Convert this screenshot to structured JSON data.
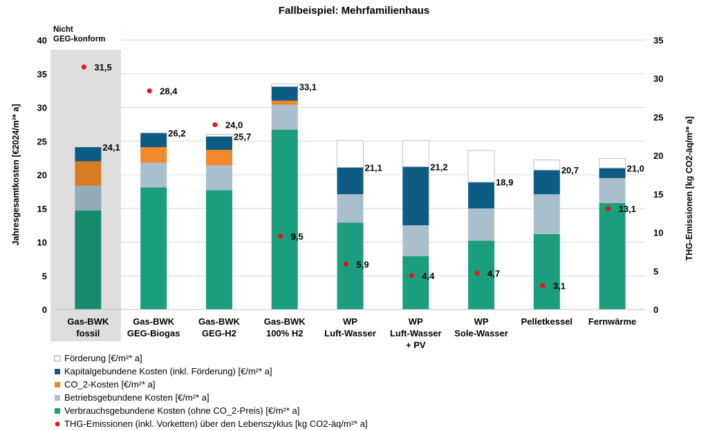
{
  "chart_data": {
    "type": "bar",
    "title": "Fallbeispiel: Mehrfamilienhaus",
    "ylabel_left": "Jahresgesamtkosten [€2024/m²* a]",
    "ylabel_right": "THG-Emissionen [kg CO2-äq/m²* a]",
    "ylim_left": [
      0,
      40
    ],
    "ylim_right": [
      0,
      35
    ],
    "yticks_left": [
      "0",
      "5",
      "10",
      "15",
      "20",
      "25",
      "30",
      "35",
      "40"
    ],
    "yticks_right": [
      "0",
      "5",
      "10",
      "15",
      "20",
      "25",
      "30",
      "35"
    ],
    "categories": [
      [
        "Gas-BWK",
        "fossil"
      ],
      [
        "Gas-BWK",
        "GEG-Biogas"
      ],
      [
        "Gas-BWK",
        "GEG-H2"
      ],
      [
        "Gas-BWK",
        "100% H2"
      ],
      [
        "WP",
        "Luft-Wasser"
      ],
      [
        "WP",
        "Luft-Wasser",
        "+ PV"
      ],
      [
        "WP",
        "Sole-Wasser"
      ],
      [
        "Pelletkessel"
      ],
      [
        "Fernwärme"
      ]
    ],
    "highlight_note": [
      "Nicht",
      "GEG-konform"
    ],
    "highlight_category_index": 0,
    "series": [
      {
        "name": "Verbrauchsgebundene Kosten (ohne CO_2-Preis) [€/m²* a]",
        "color": "#1a9e7d",
        "values": [
          14.7,
          18.1,
          17.7,
          26.7,
          12.9,
          7.9,
          10.2,
          11.2,
          15.8
        ]
      },
      {
        "name": "Betriebsgebundene Kosten  [€/m²* a]",
        "color": "#a9bfcc",
        "values": [
          3.7,
          3.7,
          3.7,
          3.7,
          4.2,
          4.6,
          4.8,
          5.9,
          3.7
        ]
      },
      {
        "name": "CO_2-Kosten [€/m²* a]",
        "color": "#f0892b",
        "values": [
          3.6,
          2.3,
          2.3,
          0.6,
          0,
          0,
          0,
          0,
          0
        ]
      },
      {
        "name": "Kapitalgebundene Kosten (inkl. Förderung) [€/m²* a]",
        "color": "#0d5c83",
        "values": [
          2.1,
          2.1,
          2.0,
          2.1,
          4.0,
          8.7,
          3.9,
          3.6,
          1.5
        ]
      },
      {
        "name": "Förderung [€/m²* a]",
        "color": "#ffffff",
        "values": [
          0,
          0,
          0.3,
          0.4,
          4.0,
          3.9,
          4.7,
          1.5,
          1.4
        ]
      }
    ],
    "totals": [
      "24,1",
      "26,2",
      "25,7",
      "33,1",
      "21,1",
      "21,2",
      "18,9",
      "20,7",
      "21,0"
    ],
    "totals_values": [
      24.1,
      26.2,
      25.7,
      33.1,
      21.1,
      21.2,
      18.9,
      20.7,
      21.0
    ],
    "emissions": {
      "name": "THG-Emissionen (inkl. Vorketten) über den Lebenszyklus [kg CO2-äq/m²* a]",
      "color": "#e8141a",
      "values": [
        31.5,
        28.4,
        24.0,
        9.5,
        5.9,
        4.4,
        4.7,
        3.1,
        13.1
      ],
      "labels": [
        "31,5",
        "28,4",
        "24,0",
        "9,5",
        "5,9",
        "4,4",
        "4,7",
        "3,1",
        "13,1"
      ]
    },
    "legend_order": [
      4,
      3,
      2,
      1,
      0,
      "emissions"
    ],
    "legend_position": "bottom-left"
  }
}
